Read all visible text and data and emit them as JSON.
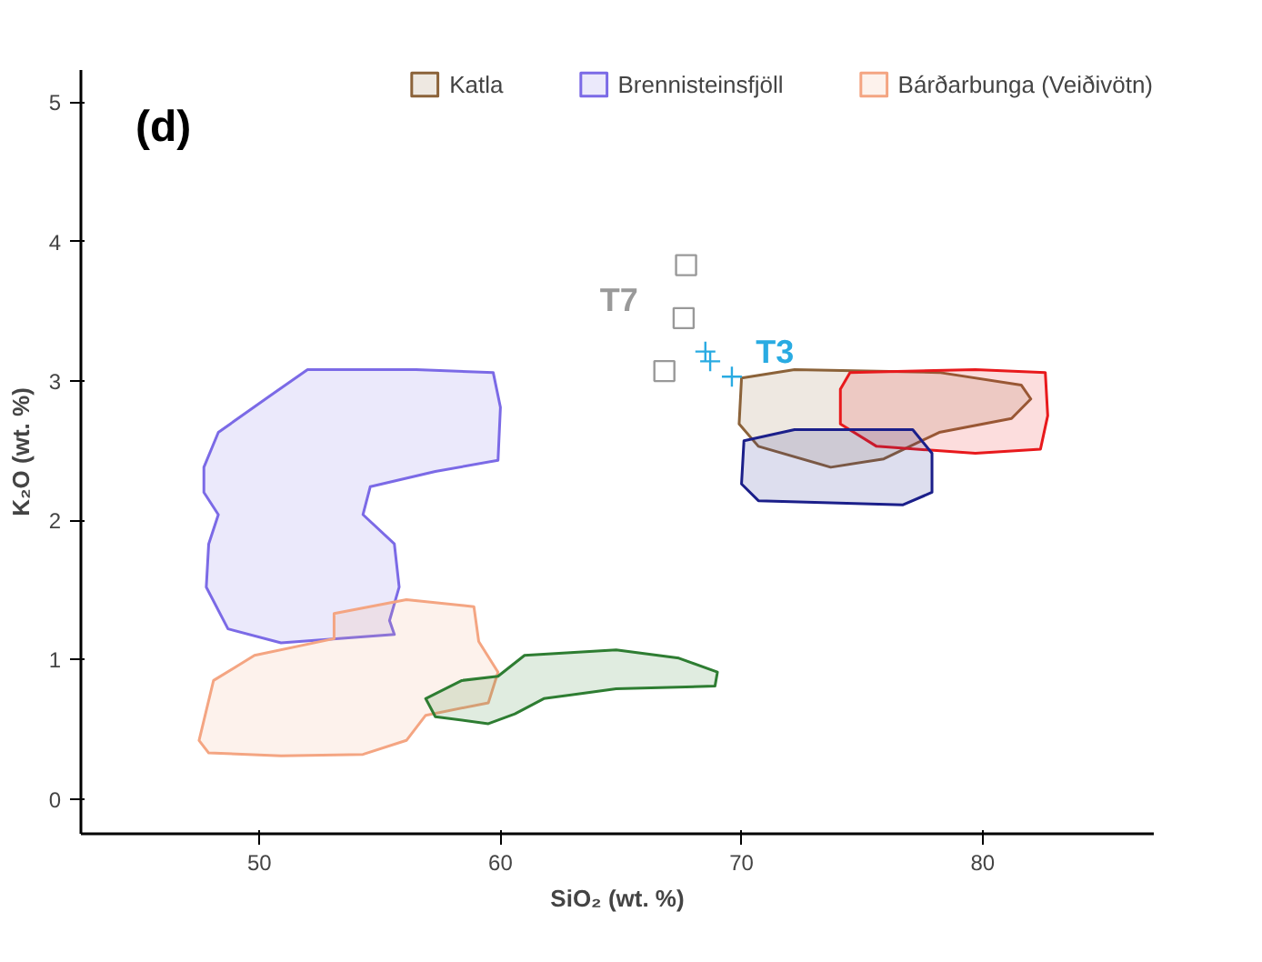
{
  "chart_data": {
    "type": "area",
    "xlabel": "SiO₂ (wt. %)",
    "ylabel": "K₂O (wt. %)",
    "xlim": [
      42.6,
      87.1
    ],
    "ylim": [
      -0.25,
      5.23
    ],
    "xticks": [
      50,
      60,
      70,
      80
    ],
    "yticks": [
      0,
      1,
      2,
      3,
      4,
      5
    ],
    "grid": false,
    "legend": "top",
    "annotations": [
      "(d)"
    ],
    "series": [
      {
        "name": "Katla",
        "color": "#8b6239",
        "x": [
          70.0,
          72.2,
          78.2,
          81.6,
          82.0,
          81.2,
          78.2,
          75.9,
          73.7,
          70.7,
          69.9
        ],
        "values": [
          3.02,
          3.08,
          3.06,
          2.97,
          2.87,
          2.73,
          2.63,
          2.44,
          2.38,
          2.53,
          2.69
        ]
      },
      {
        "name": "Brennisteinsfjöll",
        "color": "#7b6ae6",
        "x": [
          47.7,
          48.3,
          50.5,
          52.0,
          56.5,
          59.7,
          60.0,
          59.9,
          57.3,
          54.6,
          54.3,
          55.6,
          55.8,
          55.4,
          55.6,
          50.9,
          48.7,
          47.8,
          47.9,
          48.3,
          47.7
        ],
        "values": [
          2.38,
          2.63,
          2.9,
          3.08,
          3.08,
          3.06,
          2.81,
          2.43,
          2.35,
          2.24,
          2.04,
          1.83,
          1.52,
          1.28,
          1.18,
          1.12,
          1.22,
          1.52,
          1.83,
          2.04,
          2.2
        ]
      },
      {
        "name": "Bárðarbunga (Veiðivötn)",
        "color": "#f4a582",
        "x": [
          47.5,
          48.1,
          49.8,
          53.1,
          53.1,
          56.1,
          58.9,
          59.1,
          59.9,
          59.5,
          56.9,
          56.1,
          54.3,
          50.9,
          47.9
        ],
        "values": [
          0.42,
          0.85,
          1.03,
          1.15,
          1.33,
          1.43,
          1.38,
          1.13,
          0.91,
          0.69,
          0.6,
          0.42,
          0.32,
          0.31,
          0.33
        ]
      },
      {
        "color": "#2e7d32",
        "x": [
          56.9,
          58.4,
          59.9,
          61.0,
          64.8,
          67.4,
          69.0,
          68.9,
          64.8,
          61.8,
          60.6,
          59.5,
          57.3
        ],
        "values": [
          0.72,
          0.85,
          0.88,
          1.03,
          1.07,
          1.01,
          0.91,
          0.81,
          0.79,
          0.72,
          0.61,
          0.54,
          0.59
        ]
      },
      {
        "color": "#e8191c",
        "x": [
          74.5,
          79.7,
          82.6,
          82.7,
          82.4,
          79.7,
          75.6,
          74.1,
          74.1
        ],
        "values": [
          3.06,
          3.08,
          3.06,
          2.75,
          2.51,
          2.48,
          2.53,
          2.69,
          2.94
        ]
      },
      {
        "color": "#1b1f8a",
        "x": [
          70.1,
          72.2,
          77.1,
          77.9,
          77.9,
          76.7,
          70.7,
          70.0
        ],
        "values": [
          2.57,
          2.65,
          2.65,
          2.48,
          2.2,
          2.11,
          2.14,
          2.26
        ]
      },
      {
        "name": "T7",
        "type": "scatter",
        "marker": "square",
        "color": "#999999",
        "x": [
          67.7,
          67.6,
          66.8
        ],
        "values": [
          3.83,
          3.45,
          3.07
        ]
      },
      {
        "name": "T3",
        "type": "scatter",
        "marker": "cross",
        "color": "#29abe2",
        "x": [
          68.5,
          68.7,
          69.6
        ],
        "values": [
          3.21,
          3.14,
          3.03
        ]
      }
    ]
  }
}
